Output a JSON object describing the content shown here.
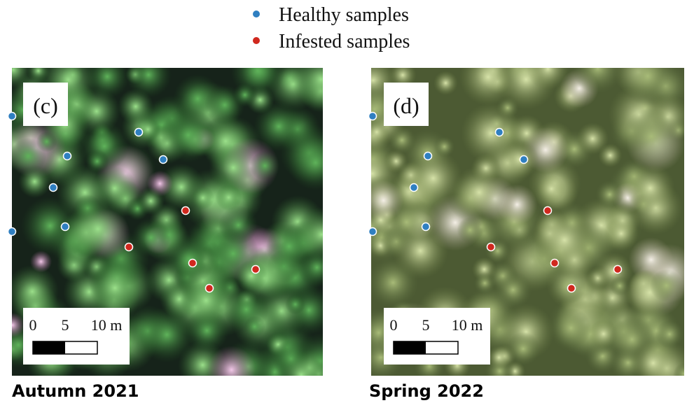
{
  "legend": {
    "items": [
      {
        "label": "Healthy samples",
        "color": "#2f7fc1"
      },
      {
        "label": "Infested samples",
        "color": "#d0281e"
      }
    ]
  },
  "panels": [
    {
      "label": "(c)",
      "caption": "Autumn 2021",
      "scale": {
        "ticks": [
          "0",
          "5",
          "10 m"
        ]
      }
    },
    {
      "label": "(d)",
      "caption": "Spring 2022",
      "scale": {
        "ticks": [
          "0",
          "5",
          "10 m"
        ]
      }
    }
  ]
}
